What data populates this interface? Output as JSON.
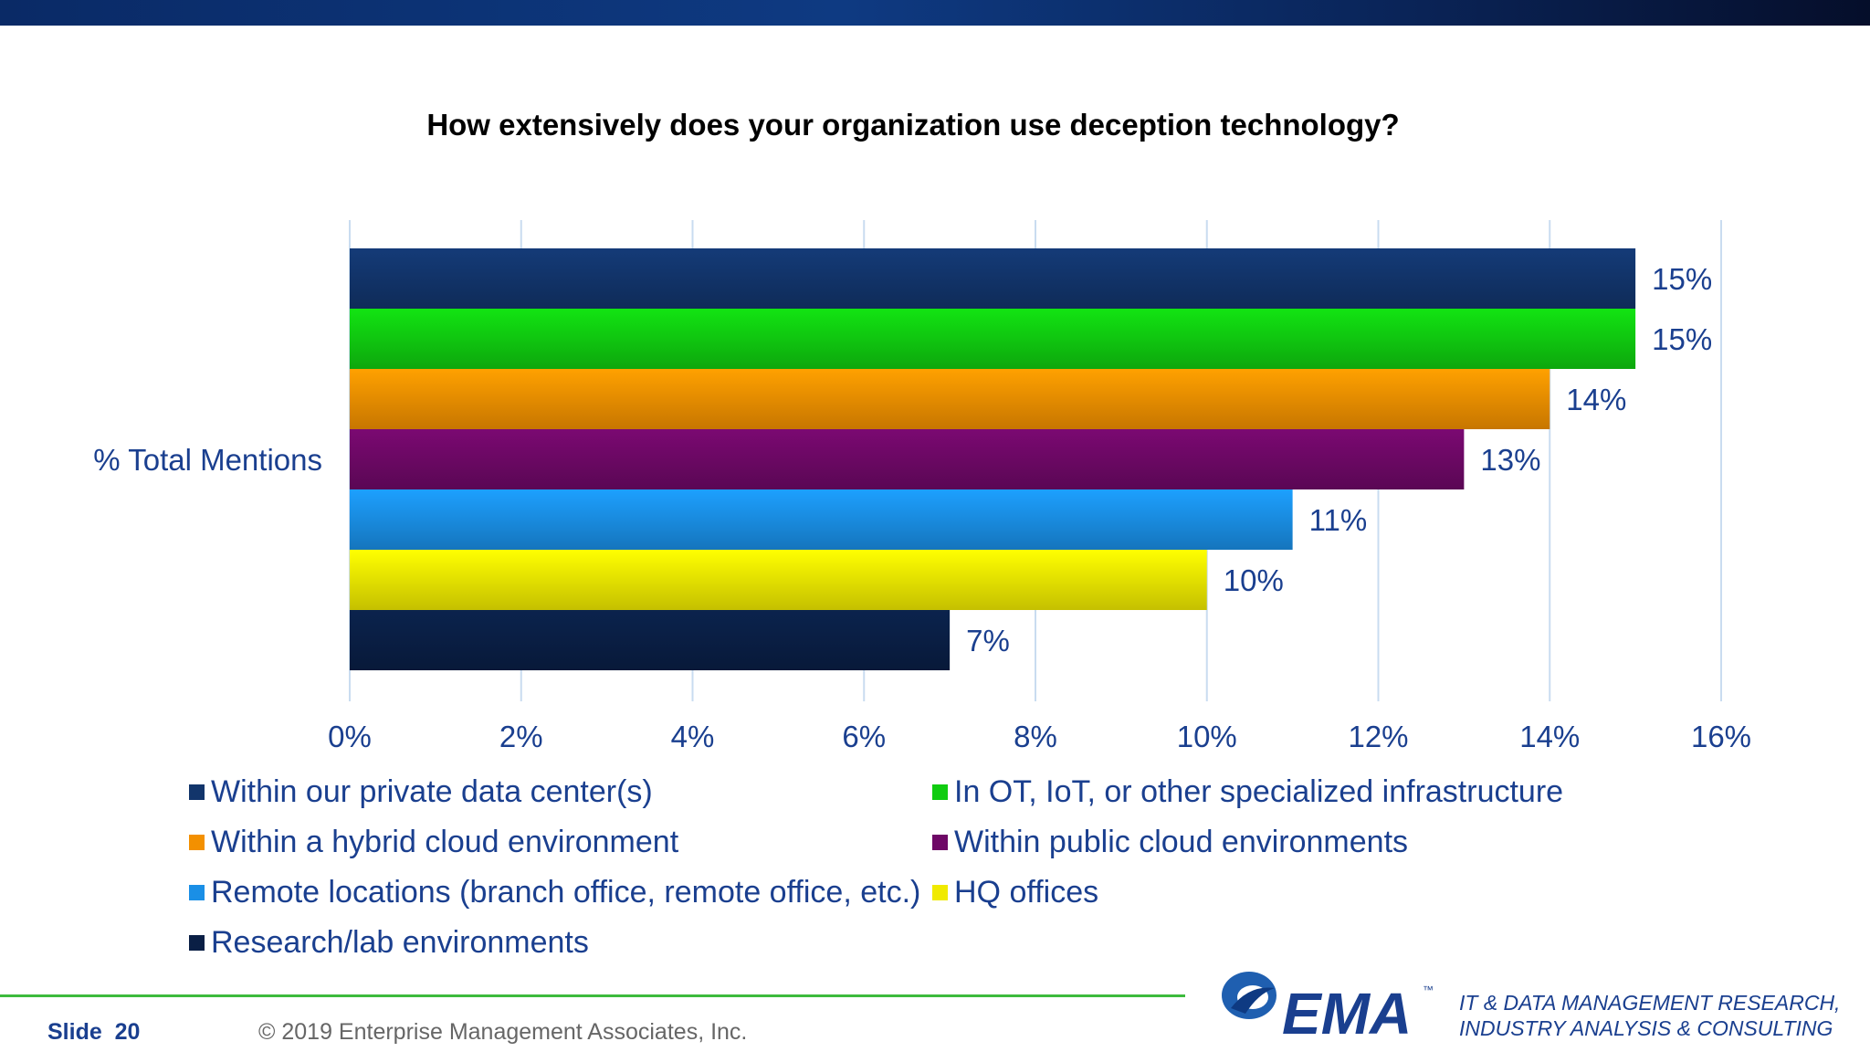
{
  "slide": {
    "slide_label": "Slide",
    "slide_number": "20",
    "copyright": "© 2019 Enterprise Management Associates, Inc.",
    "logo_text": "EMA",
    "logo_tm": "™",
    "tagline_line1": "IT & DATA MANAGEMENT RESEARCH,",
    "tagline_line2": "INDUSTRY ANALYSIS & CONSULTING"
  },
  "colors": {
    "text_blue": "#1a3f8f",
    "grid": "#c9dcf0",
    "footer_rule": "#3dbb3d",
    "top_band": "#0a2a66"
  },
  "chart_data": {
    "type": "bar",
    "orientation": "horizontal",
    "title": "How extensively does your organization use deception technology?",
    "category": "% Total Mentions",
    "xlim": [
      0,
      16
    ],
    "x_ticks": [
      "0%",
      "2%",
      "4%",
      "6%",
      "8%",
      "10%",
      "12%",
      "14%",
      "16%"
    ],
    "x_tick_values": [
      0,
      2,
      4,
      6,
      8,
      10,
      12,
      14,
      16
    ],
    "grid": true,
    "legend_position": "bottom",
    "series": [
      {
        "name": "Within our private data center(s)",
        "value": 15,
        "label": "15%",
        "color": "#12356b"
      },
      {
        "name": "In OT, IoT, or other specialized infrastructure",
        "value": 15,
        "label": "15%",
        "color": "#10cc10"
      },
      {
        "name": "Within a hybrid cloud environment",
        "value": 14,
        "label": "14%",
        "color": "#f39000"
      },
      {
        "name": "Within public cloud environments",
        "value": 13,
        "label": "13%",
        "color": "#6e0866"
      },
      {
        "name": "Remote locations (branch office, remote office, etc.)",
        "value": 11,
        "label": "11%",
        "color": "#1a8fe6"
      },
      {
        "name": "HQ offices",
        "value": 10,
        "label": "10%",
        "color": "#f0ea00"
      },
      {
        "name": "Research/lab environments",
        "value": 7,
        "label": "7%",
        "color": "#0a1f45"
      }
    ]
  }
}
